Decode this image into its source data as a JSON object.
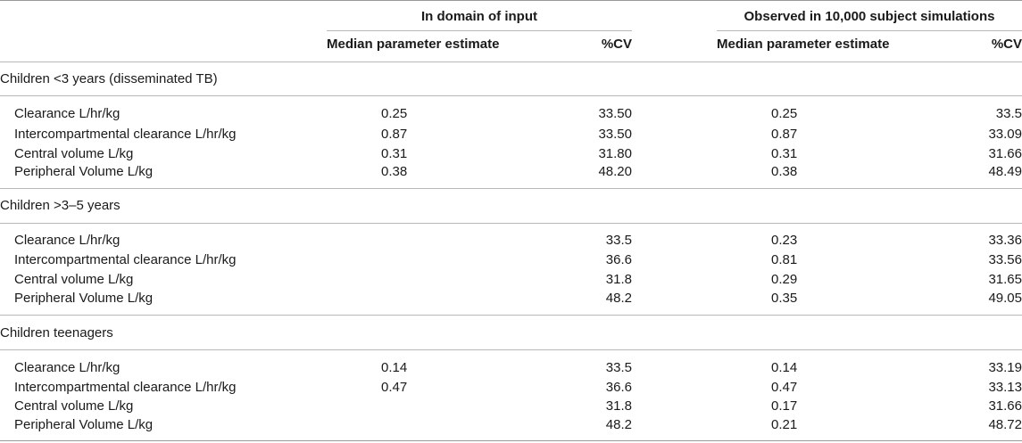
{
  "table": {
    "group_headers": [
      "In domain of input",
      "Observed in 10,000 subject simulations"
    ],
    "column_headers": [
      "Median parameter estimate",
      "%CV",
      "Median parameter estimate",
      "%CV"
    ],
    "sections": [
      {
        "title": "Children <3 years (disseminated TB)",
        "rows": [
          {
            "label": "Clearance L/hr/kg",
            "in_median": "0.25",
            "in_cv": "33.50",
            "obs_median": "0.25",
            "obs_cv": "33.5"
          },
          {
            "label": "Intercompartmental clearance L/hr/kg",
            "in_median": "0.87",
            "in_cv": "33.50",
            "obs_median": "0.87",
            "obs_cv": "33.09"
          },
          {
            "label": "Central volume L/kg",
            "in_median": "0.31",
            "in_cv": "31.80",
            "obs_median": "0.31",
            "obs_cv": "31.66"
          },
          {
            "label": "Peripheral Volume L/kg",
            "in_median": "0.38",
            "in_cv": "48.20",
            "obs_median": "0.38",
            "obs_cv": "48.49"
          }
        ]
      },
      {
        "title": "Children >3–5 years",
        "rows": [
          {
            "label": "Clearance L/hr/kg",
            "in_median": "",
            "in_cv": "33.5",
            "obs_median": "0.23",
            "obs_cv": "33.36"
          },
          {
            "label": "Intercompartmental clearance L/hr/kg",
            "in_median": "",
            "in_cv": "36.6",
            "obs_median": "0.81",
            "obs_cv": "33.56"
          },
          {
            "label": "Central volume L/kg",
            "in_median": "",
            "in_cv": "31.8",
            "obs_median": "0.29",
            "obs_cv": "31.65"
          },
          {
            "label": "Peripheral Volume L/kg",
            "in_median": "",
            "in_cv": "48.2",
            "obs_median": "0.35",
            "obs_cv": "49.05"
          }
        ]
      },
      {
        "title": "Children teenagers",
        "rows": [
          {
            "label": "Clearance L/hr/kg",
            "in_median": "0.14",
            "in_cv": "33.5",
            "obs_median": "0.14",
            "obs_cv": "33.19"
          },
          {
            "label": "Intercompartmental clearance L/hr/kg",
            "in_median": "0.47",
            "in_cv": "36.6",
            "obs_median": "0.47",
            "obs_cv": "33.13"
          },
          {
            "label": "Central volume L/kg",
            "in_median": "",
            "in_cv": "31.8",
            "obs_median": "0.17",
            "obs_cv": "31.66"
          },
          {
            "label": "Peripheral Volume L/kg",
            "in_median": "",
            "in_cv": "48.2",
            "obs_median": "0.21",
            "obs_cv": "48.72"
          }
        ]
      }
    ]
  }
}
